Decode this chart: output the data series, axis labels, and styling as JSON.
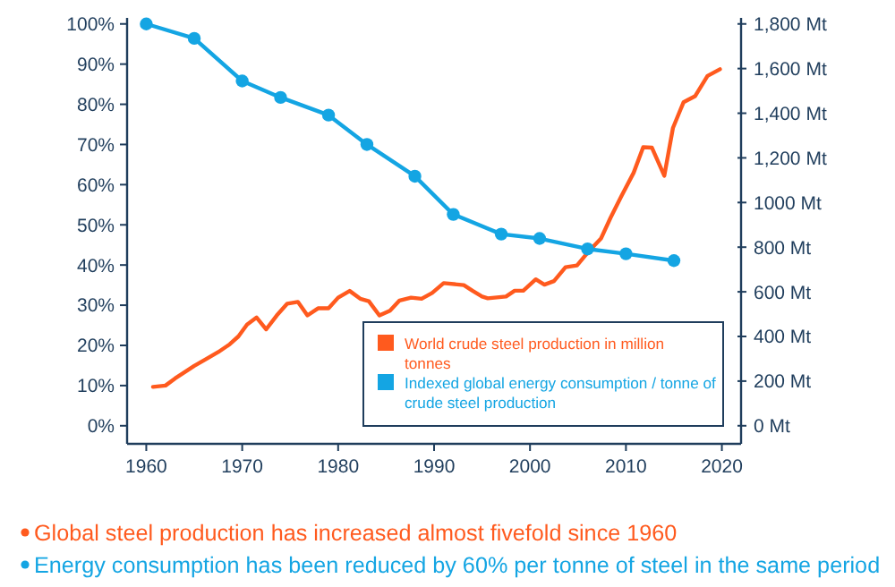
{
  "chart_data": {
    "type": "line",
    "xlim": [
      1958,
      2022
    ],
    "xticks": [
      1960,
      1970,
      1980,
      1990,
      2000,
      2010,
      2020
    ],
    "ylim": [
      -4.5,
      101.5
    ],
    "yticks": [
      {
        "value": 0,
        "label": "0%"
      },
      {
        "value": 10,
        "label": "10%"
      },
      {
        "value": 20,
        "label": "20%"
      },
      {
        "value": 30,
        "label": "30%"
      },
      {
        "value": 40,
        "label": "40%"
      },
      {
        "value": 50,
        "label": "50%"
      },
      {
        "value": 60,
        "label": "60%"
      },
      {
        "value": 70,
        "label": "70%"
      },
      {
        "value": 80,
        "label": "80%"
      },
      {
        "value": 90,
        "label": "90%"
      },
      {
        "value": 100,
        "label": "100%"
      }
    ],
    "y2lim": [
      -81,
      1827
    ],
    "y2ticks": [
      {
        "value": 0,
        "label": "0 Mt"
      },
      {
        "value": 200,
        "label": "200 Mt"
      },
      {
        "value": 400,
        "label": "400 Mt"
      },
      {
        "value": 600,
        "label": "600 Mt"
      },
      {
        "value": 800,
        "label": "800 Mt"
      },
      {
        "value": 1000,
        "label": "1000 Mt"
      },
      {
        "value": 1200,
        "label": "1,200 Mt"
      },
      {
        "value": 1400,
        "label": "1,400 Mt"
      },
      {
        "value": 1600,
        "label": "1,600 Mt"
      },
      {
        "value": 1800,
        "label": "1,800 Mt"
      }
    ],
    "grid": false,
    "legend": "bottom right",
    "series": [
      {
        "name": "World crude steel production in million tonnes",
        "color": "#ff5a1e",
        "axis": "y2",
        "marker": "none",
        "x": [
          1960.7,
          1962,
          1963,
          1965,
          1966.3,
          1967.5,
          1968.7,
          1969.6,
          1970.5,
          1971.5,
          1972.5,
          1973.6,
          1974.7,
          1975.8,
          1976.8,
          1977.9,
          1979,
          1980,
          1981.2,
          1982.3,
          1983.2,
          1984.3,
          1985.4,
          1986.4,
          1987.6,
          1988.7,
          1989.8,
          1991,
          1993.1,
          1994,
          1995,
          1995.6,
          1997.5,
          1998.4,
          1999.3,
          2000.6,
          2001.5,
          2002.5,
          2003.7,
          2004.9,
          2006.2,
          2007.4,
          2008.4,
          2009.5,
          2010.8,
          2011.8,
          2012.7,
          2014,
          2014.9,
          2016,
          2017.2,
          2018.5,
          2019.8
        ],
        "values": [
          174,
          180,
          212,
          268,
          300,
          330,
          365,
          400,
          453,
          485,
          432,
          494,
          547,
          555,
          494,
          526,
          526,
          574,
          604,
          569,
          558,
          494,
          515,
          561,
          574,
          569,
          595,
          639,
          630,
          605,
          579,
          571,
          579,
          605,
          605,
          656,
          632,
          648,
          710,
          718,
          785,
          839,
          932,
          1026,
          1133,
          1248,
          1246,
          1120,
          1334,
          1449,
          1476,
          1567,
          1597
        ]
      },
      {
        "name": "Indexed global energy consumption / tonne of crude steel production",
        "color": "#14a5e3",
        "axis": "y",
        "marker": "circle",
        "x": [
          1960,
          1965,
          1970,
          1974,
          1979,
          1983,
          1988,
          1992,
          1997,
          2001,
          2006,
          2010,
          2015
        ],
        "values": [
          100,
          96.4,
          85.8,
          81.7,
          77.3,
          70,
          62.1,
          52.6,
          47.7,
          46.6,
          44,
          42.8,
          41.1
        ]
      }
    ],
    "annotations": [
      "Global steel production has increased almost fivefold since 1960",
      "Energy consumption has been reduced by 60% per tonne of steel in the same period"
    ]
  }
}
